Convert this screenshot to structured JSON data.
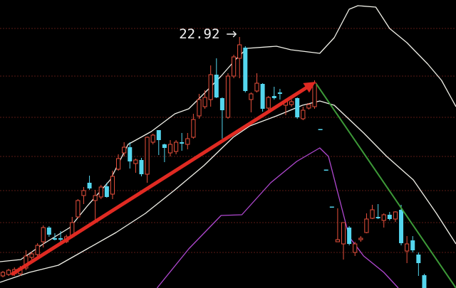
{
  "chart_data": {
    "type": "candlestick",
    "title": "",
    "xlabel": "",
    "ylabel": "",
    "xlim": [
      -0.5,
      78.5
    ],
    "ylim": [
      8.8,
      25
    ],
    "grid": true,
    "colors": {
      "background": "#000000",
      "up": "#e8503c",
      "down": "#54d6ee",
      "grid": "#5a1a14",
      "band": "#f0f0e8",
      "purple_line": "#b048d0",
      "green_line": "#3d9a38",
      "arrow": "#e02a22"
    },
    "candles_ohlc": [
      [
        9.48,
        9.76,
        9.4,
        9.68
      ],
      [
        9.56,
        9.88,
        9.48,
        9.8
      ],
      [
        9.6,
        9.96,
        9.48,
        9.84
      ],
      [
        9.6,
        10.04,
        9.48,
        9.92
      ],
      [
        9.92,
        10.92,
        9.8,
        10.6
      ],
      [
        10.52,
        10.84,
        10.4,
        10.72
      ],
      [
        10.68,
        11.32,
        10.52,
        11.2
      ],
      [
        11.4,
        12.32,
        11.08,
        12.2
      ],
      [
        12.2,
        12.28,
        11.68,
        11.8
      ],
      [
        11.6,
        11.88,
        11.48,
        11.52
      ],
      [
        11.6,
        12.0,
        11.4,
        11.52
      ],
      [
        11.4,
        11.8,
        11.32,
        11.68
      ],
      [
        11.68,
        12.8,
        11.6,
        12.48
      ],
      [
        12.8,
        13.8,
        12.72,
        13.72
      ],
      [
        14.0,
        14.48,
        13.52,
        14.28
      ],
      [
        14.72,
        15.12,
        14.32,
        14.4
      ],
      [
        13.72,
        14.32,
        12.6,
        14.0
      ],
      [
        13.92,
        14.6,
        13.8,
        14.48
      ],
      [
        14.52,
        14.72,
        13.88,
        13.92
      ],
      [
        14.08,
        15.4,
        13.8,
        15.08
      ],
      [
        15.48,
        16.32,
        15.4,
        16.08
      ],
      [
        16.4,
        17.0,
        16.2,
        16.72
      ],
      [
        16.72,
        17.0,
        15.52,
        15.92
      ],
      [
        15.8,
        16.08,
        15.28,
        16.0
      ],
      [
        16.0,
        16.12,
        15.08,
        15.2
      ],
      [
        15.2,
        17.32,
        14.72,
        17.28
      ],
      [
        17.0,
        17.48,
        16.88,
        17.4
      ],
      [
        17.68,
        17.68,
        16.28,
        17.12
      ],
      [
        16.88,
        16.92,
        15.88,
        16.68
      ],
      [
        16.4,
        17.12,
        16.2,
        16.88
      ],
      [
        16.48,
        17.12,
        16.32,
        17.0
      ],
      [
        17.0,
        17.52,
        16.52,
        16.92
      ],
      [
        16.88,
        17.52,
        16.6,
        17.2
      ],
      [
        17.28,
        18.6,
        17.2,
        18.28
      ],
      [
        18.48,
        19.72,
        18.32,
        19.4
      ],
      [
        19.0,
        19.92,
        18.88,
        19.52
      ],
      [
        19.4,
        21.32,
        19.0,
        20.8
      ],
      [
        20.8,
        21.72,
        19.48,
        19.52
      ],
      [
        19.48,
        19.52,
        17.2,
        18.8
      ],
      [
        18.4,
        20.88,
        18.32,
        20.72
      ],
      [
        20.72,
        21.92,
        20.6,
        21.8
      ],
      [
        21.72,
        22.92,
        20.6,
        22.48
      ],
      [
        22.32,
        22.4,
        19.8,
        19.88
      ],
      [
        19.4,
        19.8,
        18.68,
        19.72
      ],
      [
        19.88,
        20.88,
        19.8,
        20.32
      ],
      [
        20.28,
        20.32,
        18.72,
        18.88
      ],
      [
        18.92,
        19.6,
        18.72,
        19.52
      ],
      [
        19.6,
        20.12,
        19.4,
        19.48
      ],
      [
        19.8,
        20.0,
        19.4,
        19.72
      ],
      [
        19.08,
        19.4,
        18.52,
        19.28
      ],
      [
        19.12,
        19.4,
        19.0,
        19.28
      ],
      [
        19.48,
        19.52,
        18.32,
        18.4
      ],
      [
        18.32,
        19.0,
        18.24,
        18.8
      ],
      [
        18.92,
        19.2,
        18.84,
        19.12
      ],
      [
        19.0,
        20.48,
        18.88,
        20.32
      ],
      [
        17.74,
        17.74,
        17.7,
        17.7
      ],
      [
        15.46,
        15.46,
        15.42,
        15.42
      ],
      [
        13.38,
        13.38,
        13.34,
        13.34
      ],
      [
        11.4,
        13.28,
        11.4,
        11.52
      ],
      [
        11.28,
        12.48,
        10.4,
        12.48
      ],
      [
        12.2,
        12.28,
        11.2,
        11.28
      ],
      [
        10.8,
        11.4,
        10.6,
        11.28
      ],
      [
        11.52,
        11.72,
        11.4,
        11.6
      ],
      [
        11.92,
        13.0,
        11.88,
        12.68
      ],
      [
        12.72,
        13.48,
        12.68,
        13.2
      ],
      [
        12.8,
        13.52,
        12.68,
        12.72
      ],
      [
        12.6,
        13.0,
        12.2,
        12.92
      ],
      [
        12.92,
        13.08,
        12.6,
        12.68
      ],
      [
        12.68,
        13.12,
        12.52,
        13.08
      ],
      [
        13.2,
        13.48,
        11.2,
        11.32
      ],
      [
        10.88,
        11.72,
        10.2,
        11.28
      ],
      [
        11.48,
        11.72,
        10.8,
        10.92
      ],
      [
        10.68,
        10.8,
        9.48,
        10.2
      ],
      [
        9.52,
        9.6,
        8.6,
        8.8
      ]
    ],
    "lines": {
      "upper_band": [
        [
          -0.5,
          10.28
        ],
        [
          3.1,
          10.4
        ],
        [
          7.0,
          11.28
        ],
        [
          11.6,
          12.2
        ],
        [
          14.6,
          13.4
        ],
        [
          18.6,
          14.88
        ],
        [
          21.7,
          16.88
        ],
        [
          25.7,
          17.6
        ],
        [
          29.8,
          18.6
        ],
        [
          32.2,
          18.88
        ],
        [
          34.8,
          19.72
        ],
        [
          37.8,
          20.72
        ],
        [
          40.4,
          21.68
        ],
        [
          42.3,
          22.28
        ],
        [
          47.4,
          22.4
        ],
        [
          49.9,
          22.2
        ],
        [
          54.9,
          22.0
        ],
        [
          57.4,
          22.88
        ],
        [
          60.0,
          24.48
        ],
        [
          61.5,
          24.68
        ],
        [
          64.6,
          24.6
        ],
        [
          67.0,
          23.4
        ],
        [
          70.0,
          22.6
        ],
        [
          73.6,
          21.4
        ],
        [
          76.0,
          20.48
        ],
        [
          78.5,
          19.0
        ]
      ],
      "middle_band": [
        [
          -0.5,
          9.12
        ],
        [
          4.6,
          9.68
        ],
        [
          9.6,
          10.08
        ],
        [
          14.6,
          11.0
        ],
        [
          19.6,
          11.92
        ],
        [
          24.7,
          13.0
        ],
        [
          29.8,
          14.32
        ],
        [
          34.8,
          15.68
        ],
        [
          39.9,
          17.28
        ],
        [
          42.8,
          17.92
        ],
        [
          47.4,
          18.48
        ],
        [
          51.9,
          19.08
        ],
        [
          54.9,
          19.32
        ],
        [
          57.4,
          19.08
        ],
        [
          62.5,
          17.52
        ],
        [
          66.5,
          16.2
        ],
        [
          71.1,
          14.88
        ],
        [
          75.1,
          13.0
        ],
        [
          78.5,
          11.28
        ]
      ],
      "purple_line": [
        [
          26.7,
          8.8
        ],
        [
          32.2,
          11.0
        ],
        [
          37.8,
          12.88
        ],
        [
          41.4,
          12.92
        ],
        [
          46.4,
          14.72
        ],
        [
          50.9,
          15.92
        ],
        [
          54.9,
          16.68
        ],
        [
          56.4,
          16.2
        ],
        [
          60.0,
          11.68
        ],
        [
          62.5,
          10.6
        ],
        [
          66.0,
          9.68
        ],
        [
          68.5,
          8.8
        ]
      ],
      "green_trendline": [
        [
          54.3,
          20.28
        ],
        [
          78.5,
          8.8
        ]
      ],
      "red_arrow": [
        [
          1.7,
          9.6
        ],
        [
          54.2,
          20.4
        ]
      ]
    },
    "annotations": [
      {
        "text": "22.92",
        "at_candle": 41,
        "price": 22.92
      }
    ]
  }
}
